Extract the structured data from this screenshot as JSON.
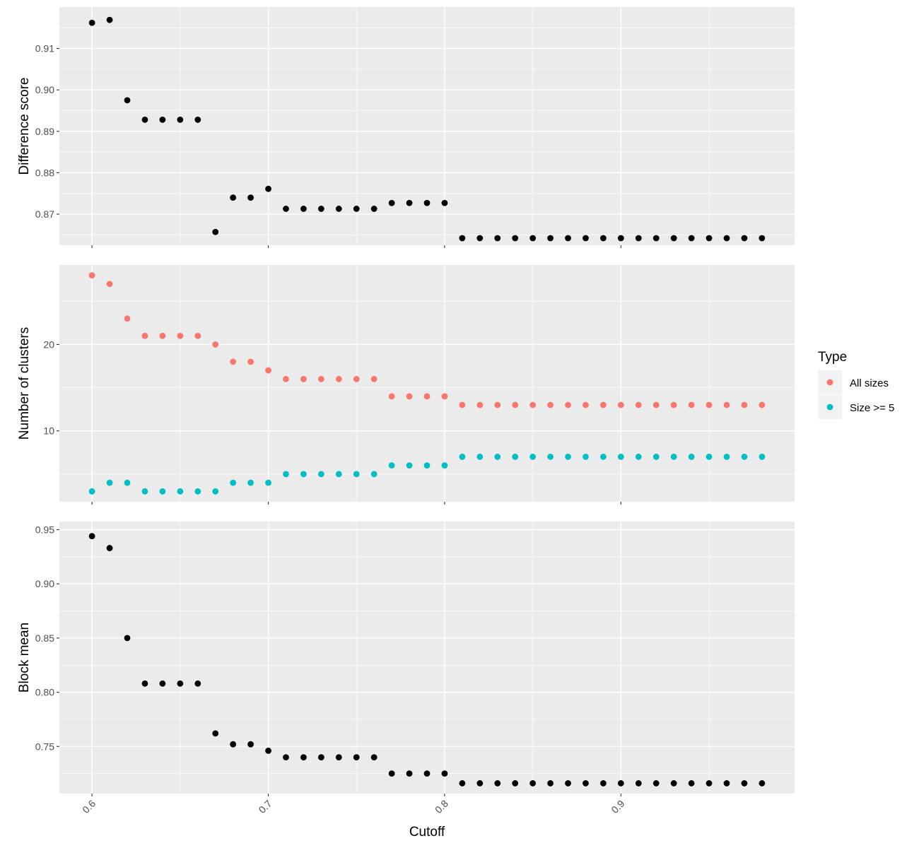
{
  "chart_data": {
    "type": "scatter",
    "xlabel": "Cutoff",
    "x": [
      0.6,
      0.61,
      0.62,
      0.63,
      0.64,
      0.65,
      0.66,
      0.67,
      0.68,
      0.69,
      0.7,
      0.71,
      0.72,
      0.73,
      0.74,
      0.75,
      0.76,
      0.77,
      0.78,
      0.79,
      0.8,
      0.81,
      0.82,
      0.83,
      0.84,
      0.85,
      0.86,
      0.87,
      0.88,
      0.89,
      0.9,
      0.91,
      0.92,
      0.93,
      0.94,
      0.95,
      0.96,
      0.97,
      0.98
    ],
    "xlim": [
      0.5815,
      0.9985
    ],
    "xticks": [
      0.6,
      0.7,
      0.8,
      0.9
    ],
    "xtick_labels": [
      "0.6",
      "0.7",
      "0.8",
      "0.9"
    ],
    "grid": true,
    "legend": {
      "title": "Type",
      "position": "right",
      "entries": [
        {
          "label": "All sizes",
          "color": "#F8766D"
        },
        {
          "label": "Size >= 5",
          "color": "#00BFC4"
        }
      ]
    },
    "panels": [
      {
        "ylabel": "Difference score",
        "ylim": [
          0.8625,
          0.92
        ],
        "yticks": [
          0.87,
          0.88,
          0.89,
          0.9,
          0.91
        ],
        "ytick_labels": [
          "0.87",
          "0.88",
          "0.89",
          "0.90",
          "0.91"
        ],
        "series": [
          {
            "color": "#000000",
            "values": [
              0.9162,
              0.9169,
              0.8975,
              0.8928,
              0.8928,
              0.8928,
              0.8928,
              0.8657,
              0.874,
              0.874,
              0.8761,
              0.8713,
              0.8713,
              0.8713,
              0.8713,
              0.8713,
              0.8713,
              0.8727,
              0.8727,
              0.8727,
              0.8727,
              0.8642,
              0.8642,
              0.8642,
              0.8642,
              0.8642,
              0.8642,
              0.8642,
              0.8642,
              0.8642,
              0.8642,
              0.8642,
              0.8642,
              0.8642,
              0.8642,
              0.8642,
              0.8642,
              0.8642,
              0.8642
            ]
          }
        ]
      },
      {
        "ylabel": "Number of clusters",
        "ylim": [
          1.8,
          29.2
        ],
        "yticks": [
          10,
          20
        ],
        "ytick_labels": [
          "10",
          "20"
        ],
        "series": [
          {
            "name": "All sizes",
            "color": "#F8766D",
            "values": [
              28,
              27,
              23,
              21,
              21,
              21,
              21,
              20,
              18,
              18,
              17,
              16,
              16,
              16,
              16,
              16,
              16,
              14,
              14,
              14,
              14,
              13,
              13,
              13,
              13,
              13,
              13,
              13,
              13,
              13,
              13,
              13,
              13,
              13,
              13,
              13,
              13,
              13,
              13
            ]
          },
          {
            "name": "Size >= 5",
            "color": "#00BFC4",
            "values": [
              3,
              4,
              4,
              3,
              3,
              3,
              3,
              3,
              4,
              4,
              4,
              5,
              5,
              5,
              5,
              5,
              5,
              6,
              6,
              6,
              6,
              7,
              7,
              7,
              7,
              7,
              7,
              7,
              7,
              7,
              7,
              7,
              7,
              7,
              7,
              7,
              7,
              7,
              7
            ]
          }
        ]
      },
      {
        "ylabel": "Block mean",
        "ylim": [
          0.7065,
          0.9575
        ],
        "yticks": [
          0.75,
          0.8,
          0.85,
          0.9,
          0.95
        ],
        "ytick_labels": [
          "0.75",
          "0.80",
          "0.85",
          "0.90",
          "0.95"
        ],
        "series": [
          {
            "color": "#000000",
            "values": [
              0.944,
              0.933,
              0.85,
              0.808,
              0.808,
              0.808,
              0.808,
              0.762,
              0.752,
              0.752,
              0.746,
              0.74,
              0.74,
              0.74,
              0.74,
              0.74,
              0.74,
              0.725,
              0.725,
              0.725,
              0.725,
              0.716,
              0.716,
              0.716,
              0.716,
              0.716,
              0.716,
              0.716,
              0.716,
              0.716,
              0.716,
              0.716,
              0.716,
              0.716,
              0.716,
              0.716,
              0.716,
              0.716,
              0.716
            ]
          }
        ]
      }
    ]
  }
}
